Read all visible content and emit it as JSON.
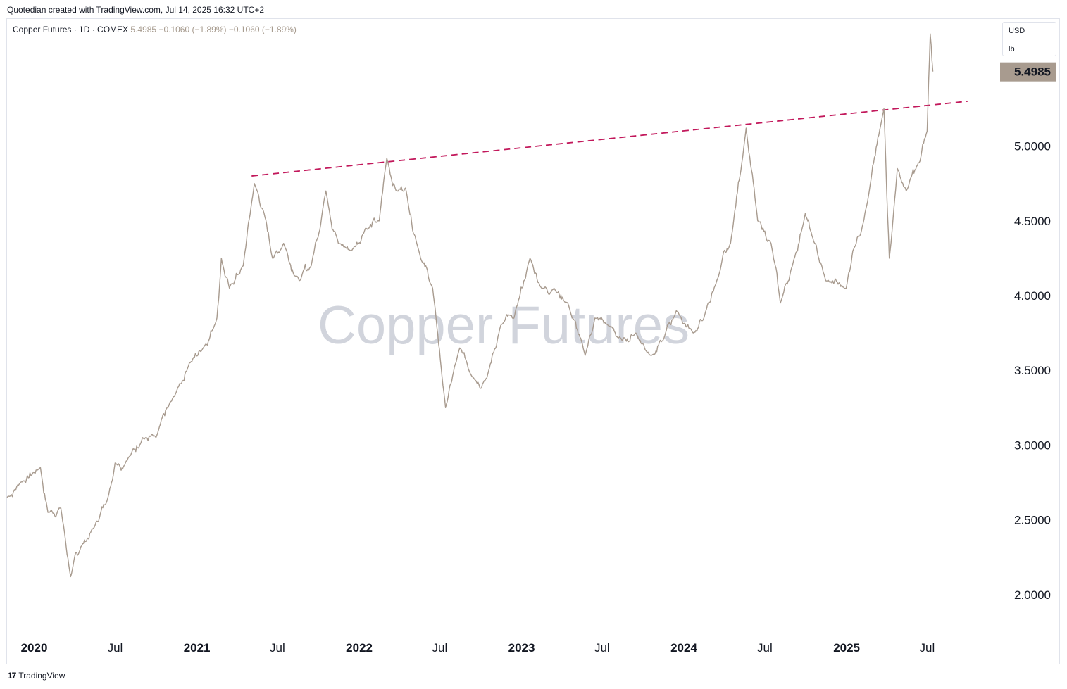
{
  "header": {
    "caption": "Quotedian created with TradingView.com, Jul 14, 2025 16:32 UTC+2"
  },
  "legend": {
    "symbol": "Copper Futures · 1D · COMEX",
    "price": "5.4985",
    "change": "−0.1060 (−1.89%)",
    "change2": "−0.1060 (−1.89%)"
  },
  "units": {
    "currency": "USD",
    "unit": "lb"
  },
  "watermark": "Copper Futures",
  "footer": {
    "brand": "TradingView",
    "logo_icon": "tradingview-logo-icon"
  },
  "colors": {
    "line": "#a89b8f",
    "trend": "#c2185b",
    "price_label_bg": "#a89b8f",
    "watermark": "#d1d4dc"
  },
  "chart_data": {
    "type": "line",
    "title": "Copper Futures",
    "ylim": [
      1.75,
      5.85
    ],
    "xlim": [
      "2019-11-01",
      "2025-12-01"
    ],
    "y_ticks": [
      "2.0000",
      "2.5000",
      "3.0000",
      "3.5000",
      "4.0000",
      "4.5000",
      "5.0000"
    ],
    "x_ticks": [
      {
        "label": "2020",
        "date": "2020-01-01",
        "bold": true
      },
      {
        "label": "Jul",
        "date": "2020-07-01",
        "bold": false
      },
      {
        "label": "2021",
        "date": "2021-01-01",
        "bold": true
      },
      {
        "label": "Jul",
        "date": "2021-07-01",
        "bold": false
      },
      {
        "label": "2022",
        "date": "2022-01-01",
        "bold": true
      },
      {
        "label": "Jul",
        "date": "2022-07-01",
        "bold": false
      },
      {
        "label": "2023",
        "date": "2023-01-01",
        "bold": true
      },
      {
        "label": "Jul",
        "date": "2023-07-01",
        "bold": false
      },
      {
        "label": "2024",
        "date": "2024-01-01",
        "bold": true
      },
      {
        "label": "Jul",
        "date": "2024-07-01",
        "bold": false
      },
      {
        "label": "2025",
        "date": "2025-01-01",
        "bold": true
      },
      {
        "label": "Jul",
        "date": "2025-07-01",
        "bold": false
      }
    ],
    "last_price_label": "5.4985",
    "series": [
      {
        "x": [
          "2019-11-01",
          "2019-12-01",
          "2020-01-15",
          "2020-02-01",
          "2020-03-01",
          "2020-03-23",
          "2020-04-15",
          "2020-05-15",
          "2020-06-15",
          "2020-07-01",
          "2020-08-01",
          "2020-09-01",
          "2020-10-01",
          "2020-11-15",
          "2020-12-15",
          "2021-01-15",
          "2021-02-15",
          "2021-02-25",
          "2021-03-15",
          "2021-04-15",
          "2021-05-10",
          "2021-06-01",
          "2021-06-20",
          "2021-07-15",
          "2021-08-19",
          "2021-09-15",
          "2021-10-18",
          "2021-11-15",
          "2021-12-15",
          "2022-01-15",
          "2022-02-15",
          "2022-03-04",
          "2022-03-25",
          "2022-04-15",
          "2022-05-15",
          "2022-06-15",
          "2022-07-14",
          "2022-08-15",
          "2022-09-15",
          "2022-10-15",
          "2022-11-15",
          "2022-12-15",
          "2023-01-20",
          "2023-02-15",
          "2023-03-15",
          "2023-04-15",
          "2023-05-24",
          "2023-06-15",
          "2023-07-15",
          "2023-08-15",
          "2023-09-15",
          "2023-10-20",
          "2023-11-15",
          "2023-12-15",
          "2024-01-22",
          "2024-02-15",
          "2024-03-15",
          "2024-04-15",
          "2024-05-20",
          "2024-06-15",
          "2024-07-15",
          "2024-08-05",
          "2024-09-01",
          "2024-09-30",
          "2024-10-15",
          "2024-11-15",
          "2024-12-31",
          "2025-01-15",
          "2025-02-15",
          "2025-03-26",
          "2025-04-07",
          "2025-04-25",
          "2025-05-15",
          "2025-06-15",
          "2025-07-01",
          "2025-07-08",
          "2025-07-14"
        ],
        "y": [
          2.65,
          2.75,
          2.85,
          2.55,
          2.58,
          2.12,
          2.32,
          2.45,
          2.65,
          2.88,
          2.92,
          3.05,
          3.05,
          3.35,
          3.55,
          3.65,
          3.85,
          4.25,
          4.05,
          4.2,
          4.75,
          4.55,
          4.25,
          4.35,
          4.1,
          4.2,
          4.7,
          4.35,
          4.3,
          4.45,
          4.5,
          4.92,
          4.7,
          4.72,
          4.3,
          4.05,
          3.25,
          3.65,
          3.45,
          3.45,
          3.8,
          3.85,
          4.25,
          4.05,
          4.05,
          3.95,
          3.6,
          3.85,
          3.8,
          3.7,
          3.75,
          3.6,
          3.7,
          3.9,
          3.75,
          3.85,
          4.1,
          4.35,
          5.12,
          4.5,
          4.35,
          3.95,
          4.2,
          4.55,
          4.4,
          4.1,
          4.05,
          4.3,
          4.6,
          5.25,
          4.25,
          4.85,
          4.7,
          4.9,
          5.1,
          5.75,
          5.4985
        ]
      }
    ],
    "trendline": {
      "x": [
        "2021-05-04",
        "2025-09-30"
      ],
      "y": [
        4.8,
        5.3
      ],
      "style": "dashed"
    },
    "watermark": "Copper Futures"
  }
}
